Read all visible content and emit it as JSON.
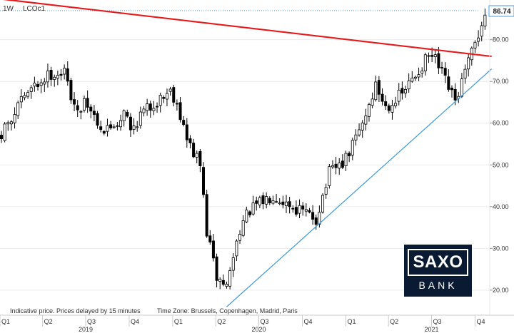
{
  "header": {
    "interval": "1W",
    "symbol": "LCOc1"
  },
  "footer": {
    "disclaimer": "Indicative price. Prices delayed by 15 minutes",
    "timezone": "Time Zone: Brussels, Copenhagen, Madrid, Paris"
  },
  "logo": {
    "line1": "SAXO",
    "line2": "BANK"
  },
  "colors": {
    "resistance": "#e41a1c",
    "support": "#4a9fd8",
    "candle_up": "#ffffff",
    "candle_down": "#000000",
    "last_price_line": "#4a9fd8",
    "logo_bg": "#0b1a33"
  },
  "chart_data": {
    "type": "candlestick",
    "instrument": "LCOc1",
    "interval": "1W",
    "last_price": "86.74",
    "ylim": [
      14,
      89
    ],
    "y_ticks": [
      "80.00",
      "70.00",
      "60.00",
      "50.00",
      "40.00",
      "30.00",
      "20.00"
    ],
    "x_range": [
      "2019-01-01",
      "2021-11-01"
    ],
    "quarter_ticks": [
      {
        "label": "Q1",
        "date": "2019-01-01"
      },
      {
        "label": "Q2",
        "date": "2019-04-01"
      },
      {
        "label": "Q3",
        "date": "2019-07-01"
      },
      {
        "label": "Q4",
        "date": "2019-10-01"
      },
      {
        "label": "Q1",
        "date": "2020-01-01"
      },
      {
        "label": "Q2",
        "date": "2020-04-01"
      },
      {
        "label": "Q3",
        "date": "2020-07-01"
      },
      {
        "label": "Q4",
        "date": "2020-10-01"
      },
      {
        "label": "Q1",
        "date": "2021-01-01"
      },
      {
        "label": "Q2",
        "date": "2021-04-01"
      },
      {
        "label": "Q3",
        "date": "2021-07-01"
      },
      {
        "label": "Q4",
        "date": "2021-10-01"
      }
    ],
    "years": [
      {
        "label": "2019",
        "date": "2019-07-01"
      },
      {
        "label": "2020",
        "date": "2020-07-01"
      },
      {
        "label": "2021",
        "date": "2021-07-01"
      }
    ],
    "close_path": [
      {
        "date": "2019-01-04",
        "close": 57
      },
      {
        "date": "2019-02-15",
        "close": 66
      },
      {
        "date": "2019-04-19",
        "close": 72
      },
      {
        "date": "2019-05-17",
        "close": 72
      },
      {
        "date": "2019-06-14",
        "close": 62
      },
      {
        "date": "2019-06-28",
        "close": 66
      },
      {
        "date": "2019-08-09",
        "close": 58
      },
      {
        "date": "2019-09-13",
        "close": 61
      },
      {
        "date": "2019-09-20",
        "close": 64
      },
      {
        "date": "2019-10-04",
        "close": 58
      },
      {
        "date": "2019-10-25",
        "close": 62
      },
      {
        "date": "2019-12-27",
        "close": 68
      },
      {
        "date": "2020-01-10",
        "close": 65
      },
      {
        "date": "2020-01-31",
        "close": 56
      },
      {
        "date": "2020-02-28",
        "close": 50
      },
      {
        "date": "2020-03-13",
        "close": 34
      },
      {
        "date": "2020-04-03",
        "close": 23
      },
      {
        "date": "2020-04-24",
        "close": 21
      },
      {
        "date": "2020-05-22",
        "close": 35
      },
      {
        "date": "2020-06-12",
        "close": 39
      },
      {
        "date": "2020-07-31",
        "close": 43
      },
      {
        "date": "2020-09-11",
        "close": 40
      },
      {
        "date": "2020-10-30",
        "close": 37
      },
      {
        "date": "2020-11-27",
        "close": 48
      },
      {
        "date": "2020-12-31",
        "close": 51
      },
      {
        "date": "2021-02-05",
        "close": 60
      },
      {
        "date": "2021-03-05",
        "close": 69
      },
      {
        "date": "2021-03-26",
        "close": 64
      },
      {
        "date": "2021-04-30",
        "close": 67
      },
      {
        "date": "2021-06-25",
        "close": 76
      },
      {
        "date": "2021-07-09",
        "close": 75
      },
      {
        "date": "2021-08-20",
        "close": 65
      },
      {
        "date": "2021-09-10",
        "close": 72
      },
      {
        "date": "2021-10-01",
        "close": 79
      },
      {
        "date": "2021-10-22",
        "close": 86
      }
    ],
    "trendlines": [
      {
        "name": "resistance",
        "from": {
          "date": "2018-10-01",
          "value": 91
        },
        "to": {
          "date": "2021-11-05",
          "value": 76
        }
      },
      {
        "name": "support",
        "from": {
          "date": "2020-04-24",
          "value": 16
        },
        "to": {
          "date": "2021-11-05",
          "value": 73
        }
      }
    ]
  }
}
